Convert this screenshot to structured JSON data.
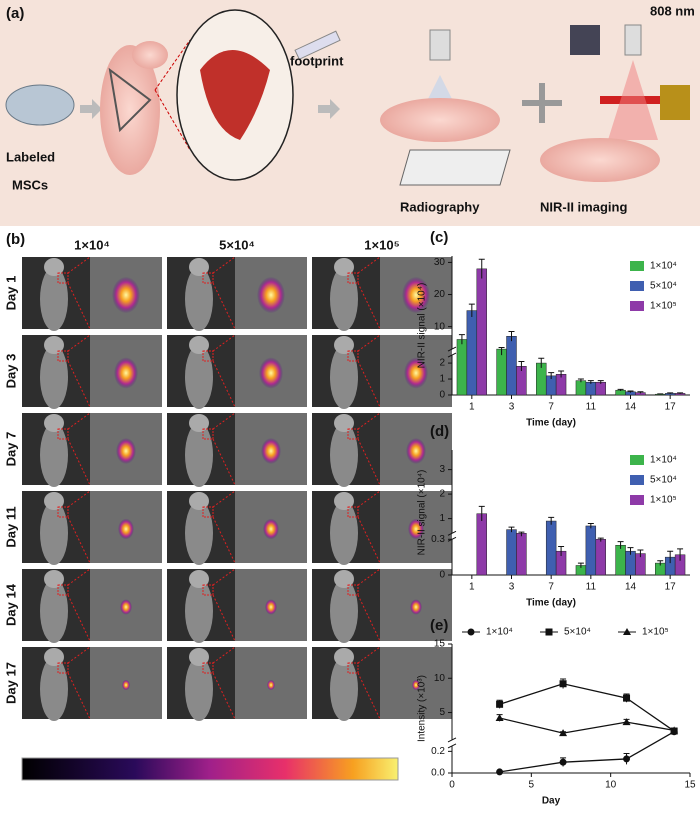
{
  "panel_a": {
    "label": "(a)",
    "labeled": "Labeled",
    "mscs": "MSCs",
    "footprint": "footprint",
    "radiography": "Radiography",
    "nir_imaging": "NIR-II imaging",
    "laser": "808 nm"
  },
  "panel_b": {
    "label": "(b)",
    "columns": [
      "1×10⁴",
      "5×10⁴",
      "1×10⁵"
    ],
    "rows": [
      "Day 1",
      "Day 3",
      "Day 7",
      "Day 11",
      "Day 14",
      "Day 17"
    ]
  },
  "chart_data": [
    {
      "type": "bar",
      "label": "(c)",
      "y_label": "NIR-II signal (×10⁴)",
      "x_label": "Time (day)",
      "categories": [
        "1",
        "3",
        "7",
        "11",
        "14",
        "17"
      ],
      "series": [
        {
          "name": "1×10⁴",
          "color": "#3cb44b",
          "values": [
            6,
            3,
            2,
            0.9,
            0.3,
            0.05
          ],
          "errors": [
            1.5,
            0.5,
            0.3,
            0.1,
            0.05,
            0.02
          ]
        },
        {
          "name": "5×10⁴",
          "color": "#3f5fb0",
          "values": [
            15,
            7,
            1.2,
            0.8,
            0.2,
            0.1
          ],
          "errors": [
            2,
            1.5,
            0.2,
            0.1,
            0.05,
            0.03
          ]
        },
        {
          "name": "1×10⁵",
          "color": "#8e3aa8",
          "values": [
            28,
            1.8,
            1.3,
            0.8,
            0.15,
            0.1
          ],
          "errors": [
            3,
            0.3,
            0.2,
            0.1,
            0.05,
            0.03
          ]
        }
      ],
      "ylim": [
        0,
        32
      ],
      "ybreak": [
        2.5,
        3
      ],
      "yticks": [
        0,
        1,
        2,
        10,
        20,
        30
      ],
      "legend": "upper right"
    },
    {
      "type": "bar",
      "label": "(d)",
      "y_label": "NIR-II signal (×10⁴)",
      "x_label": "Time (day)",
      "categories": [
        "1",
        "3",
        "7",
        "11",
        "14",
        "17"
      ],
      "series": [
        {
          "name": "1×10⁴",
          "color": "#3cb44b",
          "values": [
            null,
            null,
            null,
            0.08,
            0.25,
            0.1
          ],
          "errors": [
            null,
            null,
            null,
            0.02,
            0.03,
            0.02
          ]
        },
        {
          "name": "5×10⁴",
          "color": "#3f5fb0",
          "values": [
            null,
            0.55,
            0.9,
            0.7,
            0.2,
            0.15
          ],
          "errors": [
            null,
            0.1,
            0.15,
            0.1,
            0.03,
            0.05
          ]
        },
        {
          "name": "1×10⁵",
          "color": "#8e3aa8",
          "values": [
            1.2,
            0.4,
            0.2,
            0.3,
            0.18,
            0.17
          ],
          "errors": [
            0.3,
            0.05,
            0.04,
            0.02,
            0.03,
            0.05
          ]
        }
      ],
      "ylim": [
        0,
        3.8
      ],
      "ybreak": [
        0.3,
        0.4
      ],
      "yticks": [
        0,
        0.3,
        1,
        2,
        3
      ],
      "legend": "upper right"
    },
    {
      "type": "line",
      "label": "(e)",
      "y_label": "Intensity (×10³)",
      "x_label": "Day",
      "x": [
        3,
        7,
        11,
        14
      ],
      "series": [
        {
          "name": "1×10⁴",
          "color": "#111111",
          "marker": "circle",
          "values": [
            0.01,
            0.1,
            0.13,
            2.2
          ],
          "errors": [
            0.005,
            0.04,
            0.05,
            0.3
          ]
        },
        {
          "name": "5×10⁴",
          "color": "#111111",
          "marker": "square",
          "values": [
            6.2,
            9.2,
            7.1,
            2.3
          ],
          "errors": [
            0.6,
            0.7,
            0.6,
            0.3
          ]
        },
        {
          "name": "1×10⁵",
          "color": "#111111",
          "marker": "triangle",
          "values": [
            4.2,
            2,
            3.6,
            2.4
          ],
          "errors": [
            0.5,
            0.2,
            0.4,
            0.3
          ]
        }
      ],
      "xlim": [
        0,
        15
      ],
      "xticks": [
        0,
        5,
        10,
        15
      ],
      "ylim": [
        0,
        15
      ],
      "ybreak": [
        0.25,
        1
      ],
      "yticks": [
        {
          "value": 0,
          "label": "0.0"
        },
        {
          "value": 0.2,
          "label": "0.2"
        },
        5,
        10,
        15
      ],
      "legend": "top"
    }
  ]
}
